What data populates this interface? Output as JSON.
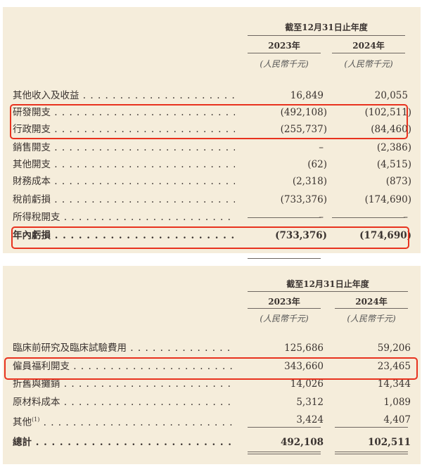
{
  "table1": {
    "period_header": "截至12月31日止年度",
    "years": [
      "2023年",
      "2024年"
    ],
    "unit": "(人民幣千元)",
    "rows": [
      {
        "label": "其他收入及收益",
        "y2023": "16,849",
        "y2024": "20,055",
        "highlighted": false
      },
      {
        "label": "研發開支",
        "y2023": "(492,108)",
        "y2024": "(102,511)",
        "highlighted": true
      },
      {
        "label": "行政開支",
        "y2023": "(255,737)",
        "y2024": "(84,460)",
        "highlighted": true
      },
      {
        "label": "銷售開支",
        "y2023": "–",
        "y2024": "(2,386)",
        "highlighted": false
      },
      {
        "label": "其他開支",
        "y2023": "(62)",
        "y2024": "(4,515)",
        "highlighted": false
      },
      {
        "label": "財務成本",
        "y2023": "(2,318)",
        "y2024": "(873)",
        "highlighted": false
      },
      {
        "label": "稅前虧損",
        "y2023": "(733,376)",
        "y2024": "(174,690)",
        "highlighted": false
      },
      {
        "label": "所得稅開支",
        "y2023": "–",
        "y2024": "–",
        "highlighted": false
      },
      {
        "label": "年內虧損",
        "y2023": "(733,376)",
        "y2024": "(174,690)",
        "highlighted": true,
        "bold": true
      }
    ]
  },
  "table2": {
    "period_header": "截至12月31日止年度",
    "years": [
      "2023年",
      "2024年"
    ],
    "unit": "(人民幣千元)",
    "rows": [
      {
        "label": "臨床前研究及臨床試驗費用",
        "y2023": "125,686",
        "y2024": "59,206",
        "highlighted": false
      },
      {
        "label": "僱員福利開支",
        "y2023": "343,660",
        "y2024": "23,465",
        "highlighted": true
      },
      {
        "label": "折舊與攤銷",
        "y2023": "14,026",
        "y2024": "14,344",
        "highlighted": false
      },
      {
        "label": "原材料成本",
        "y2023": "5,312",
        "y2024": "1,089",
        "highlighted": false
      },
      {
        "label": "其他",
        "footnote": "(1)",
        "y2023": "3,424",
        "y2024": "4,407",
        "highlighted": false
      },
      {
        "label": "總計",
        "y2023": "492,108",
        "y2024": "102,511",
        "highlighted": false,
        "bold": true
      }
    ]
  },
  "colors": {
    "background": "#f5eddb",
    "highlight": "#e8321e"
  }
}
